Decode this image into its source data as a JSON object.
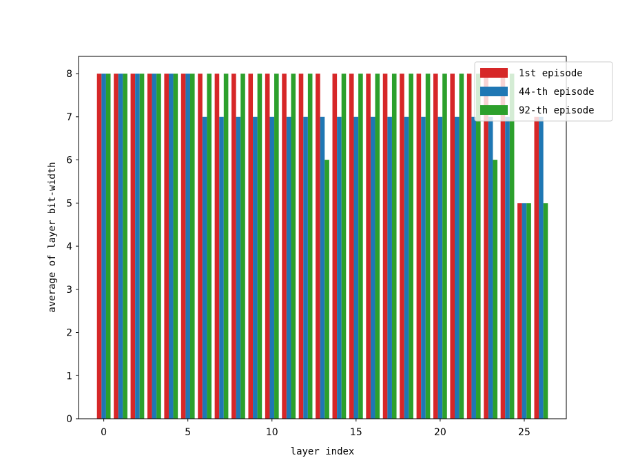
{
  "chart_data": {
    "type": "bar",
    "xlabel": "layer index",
    "ylabel": "average of layer bit-width",
    "categories": [
      0,
      1,
      2,
      3,
      4,
      5,
      6,
      7,
      8,
      9,
      10,
      11,
      12,
      13,
      14,
      15,
      16,
      17,
      18,
      19,
      20,
      21,
      22,
      23,
      24,
      25,
      26
    ],
    "xticks": [
      "0",
      "5",
      "10",
      "15",
      "20",
      "25"
    ],
    "yticks": [
      "0",
      "1",
      "2",
      "3",
      "4",
      "5",
      "6",
      "7",
      "8"
    ],
    "xlim": [
      -1.5,
      27.5
    ],
    "ylim": [
      0,
      8.4
    ],
    "grid": false,
    "legend_position": "top-right",
    "series": [
      {
        "name": "1st episode",
        "color": "#d62728",
        "values": [
          8,
          8,
          8,
          8,
          8,
          8,
          8,
          8,
          8,
          8,
          8,
          8,
          8,
          8,
          8,
          8,
          8,
          8,
          8,
          8,
          8,
          8,
          8,
          8,
          8,
          5,
          7
        ]
      },
      {
        "name": "44-th episode",
        "color": "#1f77b4",
        "values": [
          8,
          8,
          8,
          8,
          8,
          8,
          7,
          7,
          7,
          7,
          7,
          7,
          7,
          7,
          7,
          7,
          7,
          7,
          7,
          7,
          7,
          7,
          7,
          7,
          7,
          5,
          7
        ]
      },
      {
        "name": "92-th episode",
        "color": "#2ca02c",
        "values": [
          8,
          8,
          8,
          8,
          8,
          8,
          8,
          8,
          8,
          8,
          8,
          8,
          8,
          6,
          8,
          8,
          8,
          8,
          8,
          8,
          8,
          8,
          8,
          6,
          8,
          5,
          5
        ]
      }
    ]
  }
}
